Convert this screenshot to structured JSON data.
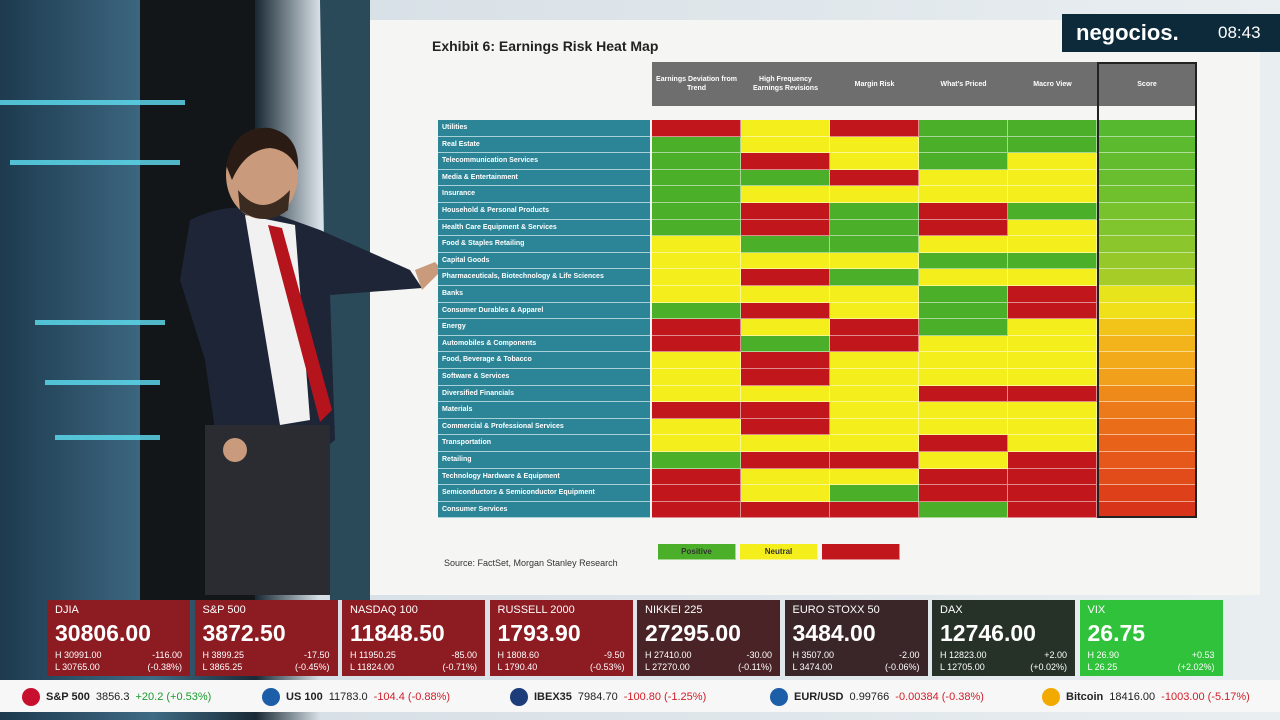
{
  "broadcast": {
    "channel": "negocios.",
    "time": "08:43"
  },
  "exhibit": {
    "title": "Exhibit 6:  Earnings Risk Heat Map",
    "source": "Source: FactSet, Morgan Stanley Research",
    "columns": [
      "Earnings Deviation from Trend",
      "High Frequency Earnings Revisions",
      "Margin Risk",
      "What's Priced",
      "Macro View",
      "Score"
    ],
    "palette": {
      "g": "#4caf2a",
      "y": "#f4ee1c",
      "r": "#c0161c"
    },
    "legend": [
      {
        "label": "Positive",
        "color": "#4caf2a"
      },
      {
        "label": "Neutral",
        "color": "#f4ee1c"
      },
      {
        "color": "#c0161c"
      }
    ],
    "rows": [
      {
        "label": "Utilities",
        "cells": "ryrgg",
        "score": "#56b82e"
      },
      {
        "label": "Real Estate",
        "cells": "gyygg",
        "score": "#5cba2e"
      },
      {
        "label": "Telecommunication Services",
        "cells": "gryg y",
        "score": "#62bc2e"
      },
      {
        "label": "Media & Entertainment",
        "cells": "ggryy",
        "score": "#68be2e"
      },
      {
        "label": "Insurance",
        "cells": "gyyyy",
        "score": "#70c02e"
      },
      {
        "label": "Household & Personal Products",
        "cells": "grgrg",
        "score": "#78c22e"
      },
      {
        "label": "Health Care Equipment & Services",
        "cells": "grgry",
        "score": "#80c42e"
      },
      {
        "label": "Food & Staples Retailing",
        "cells": "yggyy",
        "score": "#8ac62c"
      },
      {
        "label": "Capital Goods",
        "cells": "yyygg",
        "score": "#96c82a"
      },
      {
        "label": "Pharmaceuticals, Biotechnology & Life Sciences",
        "cells": "yrgyy",
        "score": "#a6cc28"
      },
      {
        "label": "Banks",
        "cells": "yyygr",
        "score": "#e8e41c"
      },
      {
        "label": "Consumer Durables & Apparel",
        "cells": "grygr",
        "score": "#f0e01a"
      },
      {
        "label": "Energy",
        "cells": "ryrgy",
        "score": "#f2c41a"
      },
      {
        "label": "Automobiles & Components",
        "cells": "rgryy",
        "score": "#f2b41a"
      },
      {
        "label": "Food, Beverage & Tobacco",
        "cells": "yryyy",
        "score": "#f2aa1a"
      },
      {
        "label": "Software & Services",
        "cells": "yryyy",
        "score": "#f0a01a"
      },
      {
        "label": "Diversified Financials",
        "cells": "yyyrr",
        "score": "#ee8a1a"
      },
      {
        "label": "Materials",
        "cells": "rryyy",
        "score": "#ec7a1a"
      },
      {
        "label": "Commercial & Professional Services",
        "cells": "yryyy",
        "score": "#ea6e1a"
      },
      {
        "label": "Transportation",
        "cells": "yyyry",
        "score": "#e8621a"
      },
      {
        "label": "Retailing",
        "cells": "grryr",
        "score": "#e6581a"
      },
      {
        "label": "Technology Hardware & Equipment",
        "cells": "ryyrr",
        "score": "#e24c1a"
      },
      {
        "label": "Semiconductors & Semiconductor Equipment",
        "cells": "rygrr",
        "score": "#de401a"
      },
      {
        "label": "Consumer Services",
        "cells": "rrrgr",
        "score": "#d8341a"
      }
    ]
  },
  "tiles": [
    {
      "name": "DJIA",
      "price": "30806.00",
      "high": "H 30991.00",
      "change": "-116.00",
      "low": "L 30765.00",
      "pct": "(-0.38%)",
      "color": "#8c1b22"
    },
    {
      "name": "S&P 500",
      "price": "3872.50",
      "high": "H 3899.25",
      "change": "-17.50",
      "low": "L 3865.25",
      "pct": "(-0.45%)",
      "color": "#8c1b22"
    },
    {
      "name": "NASDAQ 100",
      "price": "11848.50",
      "high": "H 11950.25",
      "change": "-85.00",
      "low": "L 11824.00",
      "pct": "(-0.71%)",
      "color": "#8c1b22"
    },
    {
      "name": "RUSSELL 2000",
      "price": "1793.90",
      "high": "H 1808.60",
      "change": "-9.50",
      "low": "L 1790.40",
      "pct": "(-0.53%)",
      "color": "#8c1b22"
    },
    {
      "name": "NIKKEI 225",
      "price": "27295.00",
      "high": "H 27410.00",
      "change": "-30.00",
      "low": "L 27270.00",
      "pct": "(-0.11%)",
      "color": "#4a2326"
    },
    {
      "name": "EURO STOXX 50",
      "price": "3484.00",
      "high": "H 3507.00",
      "change": "-2.00",
      "low": "L 3474.00",
      "pct": "(-0.06%)",
      "color": "#3a2628"
    },
    {
      "name": "DAX",
      "price": "12746.00",
      "high": "H 12823.00",
      "change": "+2.00",
      "low": "L 12705.00",
      "pct": "(+0.02%)",
      "color": "#263228"
    },
    {
      "name": "VIX",
      "price": "26.75",
      "high": "H 26.90",
      "change": "+0.53",
      "low": "L 26.25",
      "pct": "(+2.02%)",
      "color": "#2fc23a"
    }
  ],
  "ticker": [
    {
      "name": "S&P 500",
      "price": "3856.3",
      "change": "+20.2 (+0.53%)",
      "up": true,
      "icon": "#c8102e"
    },
    {
      "name": "US 100",
      "price": "11783.0",
      "change": "-104.4 (-0.88%)",
      "up": false,
      "icon": "#1c5fa8"
    },
    {
      "name": "IBEX35",
      "price": "7984.70",
      "change": "-100.80 (-1.25%)",
      "up": false,
      "icon": "#1c3d7a"
    },
    {
      "name": "EUR/USD",
      "price": "0.99766",
      "change": "-0.00384 (-0.38%)",
      "up": false,
      "icon": "#1c5fa8"
    },
    {
      "name": "Bitcoin",
      "price": "18416.00",
      "change": "-1003.00 (-5.17%)",
      "up": false,
      "icon": "#f2a900"
    }
  ]
}
